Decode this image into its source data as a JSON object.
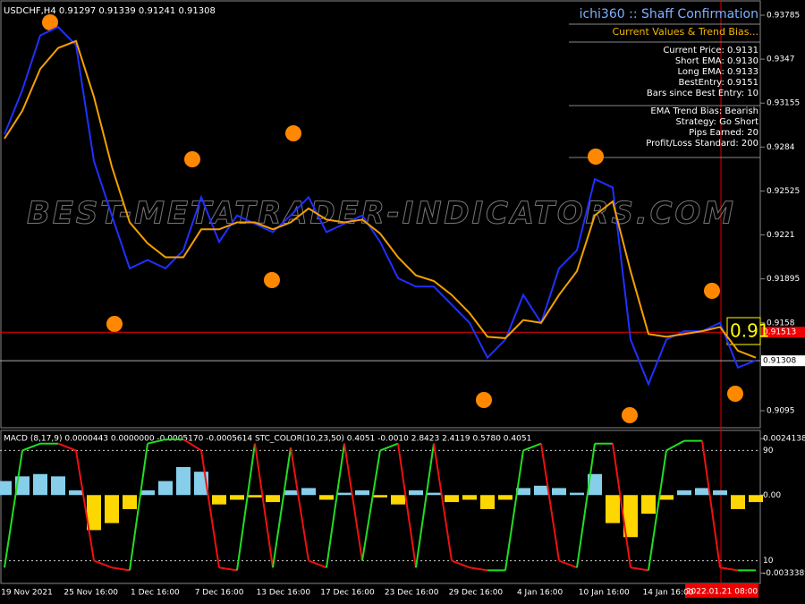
{
  "header": {
    "symbol_line": "USDCHF,H4  0.91297 0.91339 0.91241 0.91308"
  },
  "watermark": "BEST-METATRADER-INDICATORS.COM",
  "panel": {
    "title": "ichi360 :: Shaff Confirmation",
    "subtitle": "Current Values & Trend Bias...",
    "rows": [
      "Current Price: 0.9131",
      "Short EMA: 0.9130",
      "Long EMA: 0.9133",
      "BestEntry: 0.9151",
      "Bars since Best Entry: 10"
    ],
    "rows2": [
      "EMA Trend Bias: Bearish",
      "Strategy:  Go Short",
      "Pips Earned: 20",
      "Profit/Loss Standard: 200"
    ]
  },
  "price": {
    "ylim": [
      0.90828,
      0.93894
    ],
    "ticks": [
      0.93785,
      0.9347,
      0.93155,
      0.9284,
      0.92525,
      0.9221,
      0.91895,
      0.9158,
      0.9095
    ],
    "bid": 0.91308,
    "red_level": 0.91513,
    "big_label": "0.91",
    "close": [
      0.9293,
      0.9325,
      0.9364,
      0.937,
      0.9357,
      0.9274,
      0.9235,
      0.9197,
      0.9203,
      0.9197,
      0.921,
      0.9248,
      0.9216,
      0.9235,
      0.9229,
      0.9223,
      0.9235,
      0.9248,
      0.9223,
      0.9229,
      0.9235,
      0.9216,
      0.919,
      0.9184,
      0.9184,
      0.9171,
      0.9158,
      0.9133,
      0.9146,
      0.9178,
      0.9158,
      0.9197,
      0.921,
      0.9261,
      0.9255,
      0.9146,
      0.9114,
      0.9146,
      0.9152,
      0.9152,
      0.9158,
      0.9126,
      0.9131
    ],
    "ema": [
      0.929,
      0.931,
      0.934,
      0.9355,
      0.936,
      0.932,
      0.927,
      0.923,
      0.9215,
      0.9205,
      0.9205,
      0.9225,
      0.9225,
      0.923,
      0.923,
      0.9225,
      0.923,
      0.924,
      0.9232,
      0.923,
      0.9232,
      0.9222,
      0.9205,
      0.9192,
      0.9188,
      0.9178,
      0.9165,
      0.9148,
      0.9147,
      0.916,
      0.9158,
      0.9178,
      0.9195,
      0.9235,
      0.9245,
      0.9195,
      0.915,
      0.9148,
      0.915,
      0.9152,
      0.9155,
      0.9138,
      0.9133
    ]
  },
  "indicator": {
    "label": "MACD (8,17,9) 0.0000443 0.0000000 -0.0005170 -0.0005614  STC_COLOR(10,23,50) 0.4051 -0.0010 2.8423 2.4119 0.5780 0.4051",
    "macd_lim": [
      -0.0034,
      0.0025
    ],
    "macd_ticks": [
      0.0024138,
      {
        "value": 0,
        "label": "0.00"
      },
      -0.0033389
    ],
    "stc_lim": [
      0,
      100
    ],
    "stc_ticks": [
      90,
      10
    ],
    "hist": [
      0.0006,
      0.0008,
      0.0009,
      0.0008,
      0.0002,
      -0.0015,
      -0.0012,
      -0.0006,
      0.0002,
      0.0006,
      0.0012,
      0.001,
      -0.0004,
      -0.0002,
      -0.0001,
      -0.0003,
      0.0002,
      0.0003,
      -0.0002,
      0.0001,
      0.0002,
      -0.0001,
      -0.0004,
      0.0002,
      0.0001,
      -0.0003,
      -0.0002,
      -0.0006,
      -0.0002,
      0.0003,
      0.0004,
      0.0003,
      0.0001,
      0.0009,
      -0.0012,
      -0.0018,
      -0.0008,
      -0.0002,
      0.0002,
      0.0003,
      0.0002,
      -0.0006,
      -0.0003
    ],
    "stc": [
      5,
      90,
      95,
      95,
      90,
      10,
      5,
      3,
      95,
      98,
      98,
      90,
      5,
      3,
      95,
      5,
      92,
      10,
      5,
      95,
      10,
      90,
      95,
      5,
      95,
      10,
      5,
      3,
      3,
      90,
      95,
      10,
      5,
      95,
      95,
      5,
      3,
      90,
      97,
      97,
      5,
      3,
      3
    ]
  },
  "dates": [
    "19 Nov 2021",
    "25 Nov 16:00",
    "1 Dec 16:00",
    "7 Dec 16:00",
    "13 Dec 16:00",
    "17 Dec 16:00",
    "23 Dec 16:00",
    "29 Dec 16:00",
    "4 Jan 16:00",
    "10 Jan 16:00",
    "14 Jan 16:00"
  ],
  "cursor_date": "2022.01.21 08:00"
}
